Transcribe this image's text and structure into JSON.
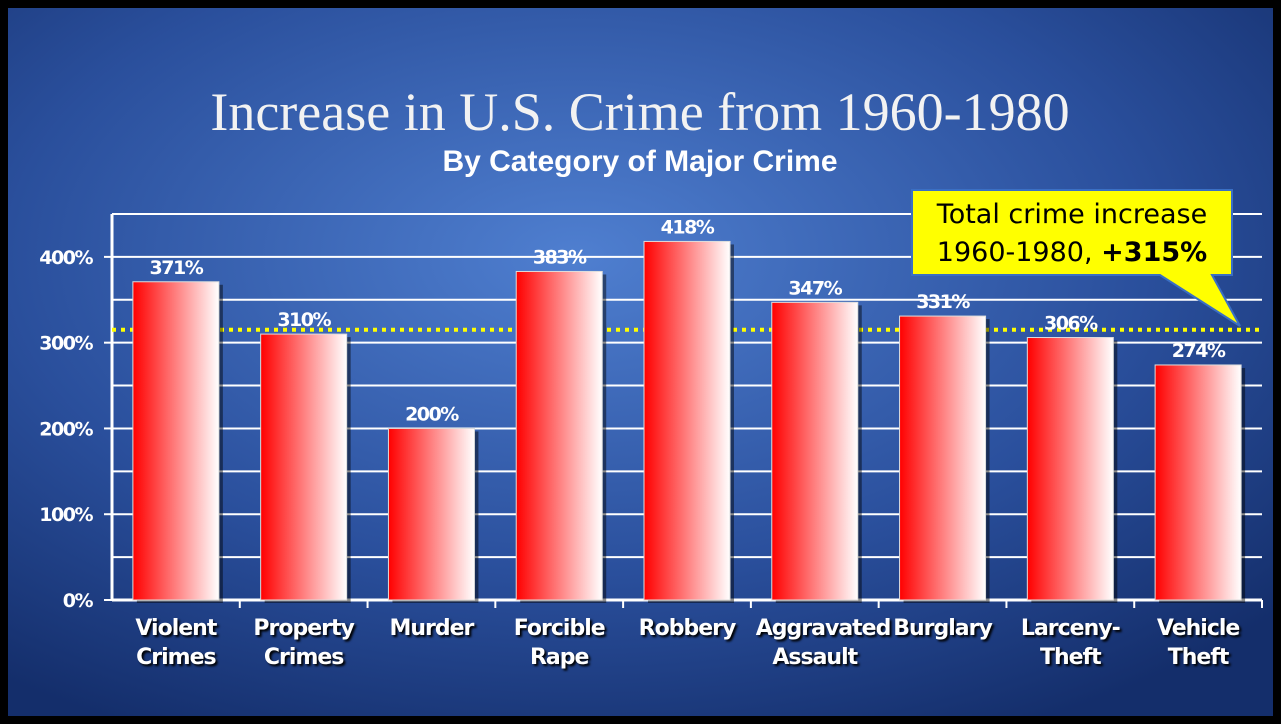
{
  "chart_data": {
    "type": "bar",
    "title": "Increase in U.S. Crime from 1960-1980",
    "subtitle": "By Category of Major Crime",
    "categories": [
      "Violent Crimes",
      "Property Crimes",
      "Murder",
      "Forcible Rape",
      "Robbery",
      "Aggravated Assault",
      "Burglary",
      "Larceny-Theft",
      "Vehicle Theft"
    ],
    "values": [
      371,
      310,
      200,
      383,
      418,
      347,
      331,
      306,
      274
    ],
    "value_labels": [
      "371%",
      "310%",
      "200%",
      "383%",
      "418%",
      "347%",
      "331%",
      "306%",
      "274%"
    ],
    "color": "#ff0000",
    "ylim": [
      0,
      450
    ],
    "yticks": [
      {
        "value": 0,
        "label": "0%"
      },
      {
        "value": 100,
        "label": "100%"
      },
      {
        "value": 200,
        "label": "200%"
      },
      {
        "value": 300,
        "label": "300%"
      },
      {
        "value": 400,
        "label": "400%"
      }
    ],
    "minor_yticks": [
      50,
      150,
      250,
      350,
      450
    ],
    "grid": true,
    "reference_line": {
      "value": 315,
      "color": "#ffff00",
      "label_lines": [
        "Total crime increase",
        "1960-1980,"
      ],
      "label_value": "+315%"
    }
  }
}
